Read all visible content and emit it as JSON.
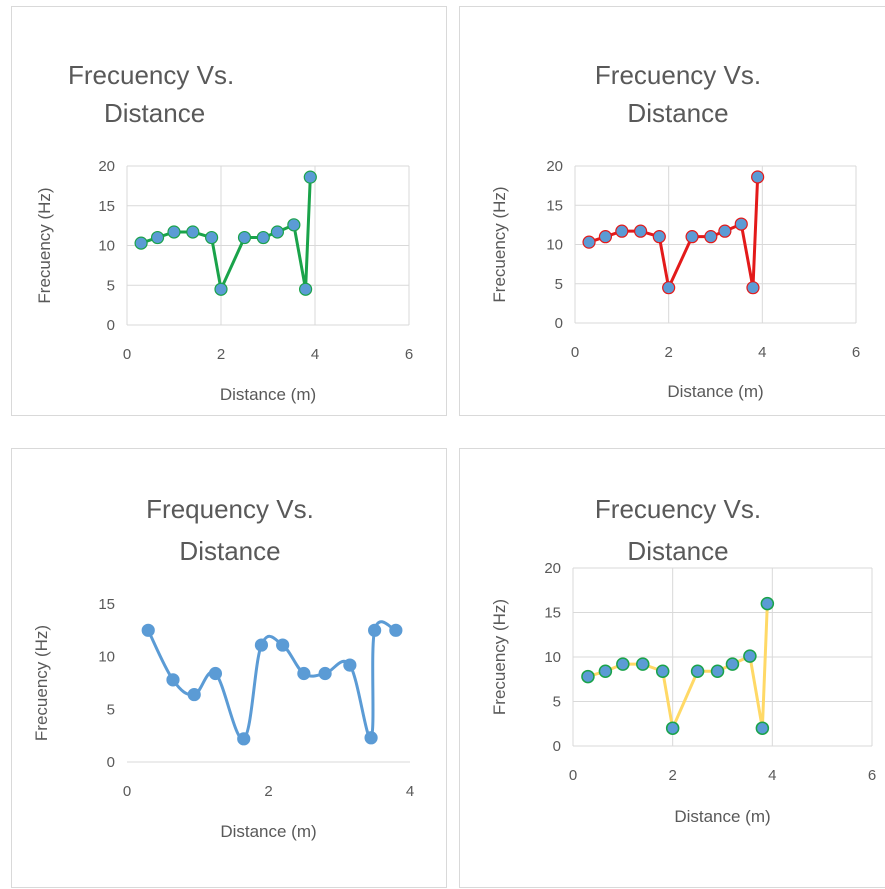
{
  "chart_data": [
    {
      "type": "line",
      "title_lines": [
        "Frecuency Vs.",
        "Distance"
      ],
      "xlabel": "Distance (m)",
      "ylabel": "Frecuency (Hz)",
      "xlim": [
        0,
        6
      ],
      "ylim": [
        0,
        20
      ],
      "xticks": [
        0,
        2,
        4,
        6
      ],
      "yticks": [
        0,
        5,
        10,
        15,
        20
      ],
      "grid": true,
      "line_color": "#1aa34a",
      "marker_color": "#5b9bd5",
      "smooth": false,
      "series": [
        {
          "x": [
            0.3,
            0.65,
            1.0,
            1.4,
            1.8,
            2.0,
            2.5,
            2.9,
            3.2,
            3.55,
            3.8,
            3.9
          ],
          "y": [
            10.3,
            11.0,
            11.7,
            11.7,
            11.0,
            4.5,
            11.0,
            11.0,
            11.7,
            12.6,
            4.5,
            18.6
          ]
        }
      ]
    },
    {
      "type": "line",
      "title_lines": [
        "Frecuency Vs.",
        "Distance"
      ],
      "xlabel": "Distance (m)",
      "ylabel": "Frecuency (Hz)",
      "xlim": [
        0,
        6
      ],
      "ylim": [
        0,
        20
      ],
      "xticks": [
        0,
        2,
        4,
        6
      ],
      "yticks": [
        0,
        5,
        10,
        15,
        20
      ],
      "grid": true,
      "line_color": "#e31a1a",
      "marker_color": "#5b9bd5",
      "smooth": false,
      "series": [
        {
          "x": [
            0.3,
            0.65,
            1.0,
            1.4,
            1.8,
            2.0,
            2.5,
            2.9,
            3.2,
            3.55,
            3.8,
            3.9
          ],
          "y": [
            10.3,
            11.0,
            11.7,
            11.7,
            11.0,
            4.5,
            11.0,
            11.0,
            11.7,
            12.6,
            4.5,
            18.6
          ]
        }
      ]
    },
    {
      "type": "line",
      "title_lines": [
        "Frequency Vs.",
        "Distance"
      ],
      "xlabel": "Distance (m)",
      "ylabel": "Frecuency (Hz)",
      "xlim": [
        0,
        4
      ],
      "ylim": [
        0,
        15
      ],
      "xticks": [
        0,
        2,
        4
      ],
      "yticks": [
        0,
        5,
        10,
        15
      ],
      "grid": false,
      "line_color": "#5b9bd5",
      "marker_color": "#5b9bd5",
      "smooth": true,
      "series": [
        {
          "x": [
            0.3,
            0.65,
            0.95,
            1.25,
            1.65,
            1.9,
            2.2,
            2.5,
            2.8,
            3.15,
            3.45,
            3.5,
            3.8
          ],
          "y": [
            12.5,
            7.8,
            6.4,
            8.4,
            2.2,
            11.1,
            11.1,
            8.4,
            8.4,
            9.2,
            2.3,
            12.5,
            12.5
          ]
        }
      ]
    },
    {
      "type": "line",
      "title_lines": [
        "Frecuency Vs.",
        "Distance"
      ],
      "xlabel": "Distance (m)",
      "ylabel": "Frecuency (Hz)",
      "xlim": [
        0,
        6
      ],
      "ylim": [
        0,
        20
      ],
      "xticks": [
        0,
        2,
        4,
        6
      ],
      "yticks": [
        0,
        5,
        10,
        15,
        20
      ],
      "grid": true,
      "line_color": "#ffd966",
      "marker_color": "#5b9bd5",
      "marker_edge": "#1aa34a",
      "smooth": false,
      "series": [
        {
          "x": [
            0.3,
            0.65,
            1.0,
            1.4,
            1.8,
            2.0,
            2.5,
            2.9,
            3.2,
            3.55,
            3.8,
            3.9
          ],
          "y": [
            7.8,
            8.4,
            9.2,
            9.2,
            8.4,
            2.0,
            8.4,
            8.4,
            9.2,
            10.1,
            2.0,
            16.0
          ]
        }
      ]
    }
  ]
}
